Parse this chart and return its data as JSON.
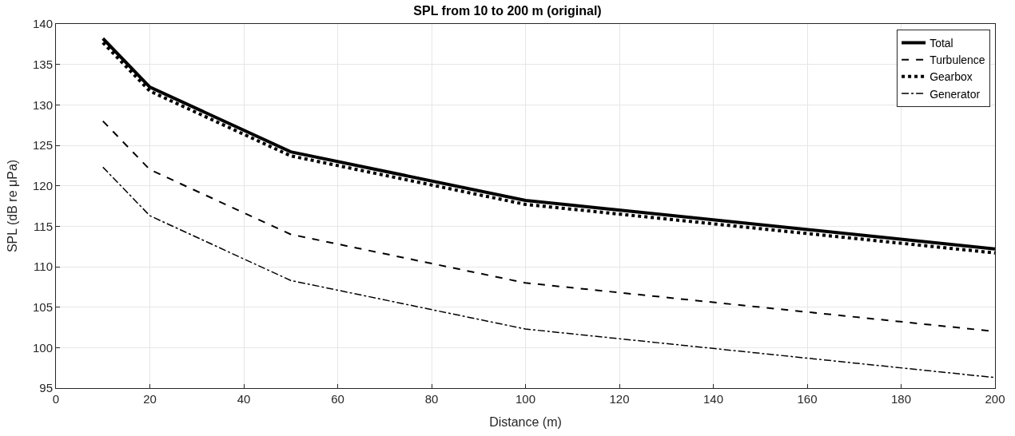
{
  "chart_data": {
    "type": "line",
    "title": "SPL from 10 to 200 m (original)",
    "xlabel": "Distance (m)",
    "ylabel": "SPL (dB re μPa)",
    "x": [
      10,
      20,
      50,
      100,
      200
    ],
    "series": [
      {
        "name": "Total",
        "color": "#000000",
        "line_style": "solid",
        "values": [
          138.2,
          132.2,
          124.2,
          118.2,
          112.2
        ]
      },
      {
        "name": "Turbulence",
        "color": "#000000",
        "line_style": "dashed",
        "values": [
          128,
          122,
          114,
          108,
          102
        ]
      },
      {
        "name": "Gearbox",
        "color": "#000000",
        "line_style": "dotted",
        "values": [
          137.7,
          131.7,
          123.7,
          117.7,
          111.7
        ]
      },
      {
        "name": "Generator",
        "color": "#000000",
        "line_style": "dashdot",
        "values": [
          122.3,
          116.3,
          108.3,
          102.3,
          96.3
        ]
      }
    ],
    "xlim": [
      0,
      200
    ],
    "xticks": [
      0,
      20,
      40,
      60,
      80,
      100,
      120,
      140,
      160,
      180,
      200
    ],
    "ylim": [
      95,
      140
    ],
    "yticks": [
      95,
      100,
      105,
      110,
      115,
      120,
      125,
      130,
      135,
      140
    ],
    "grid": true,
    "legend": "top right",
    "marker": "none"
  }
}
